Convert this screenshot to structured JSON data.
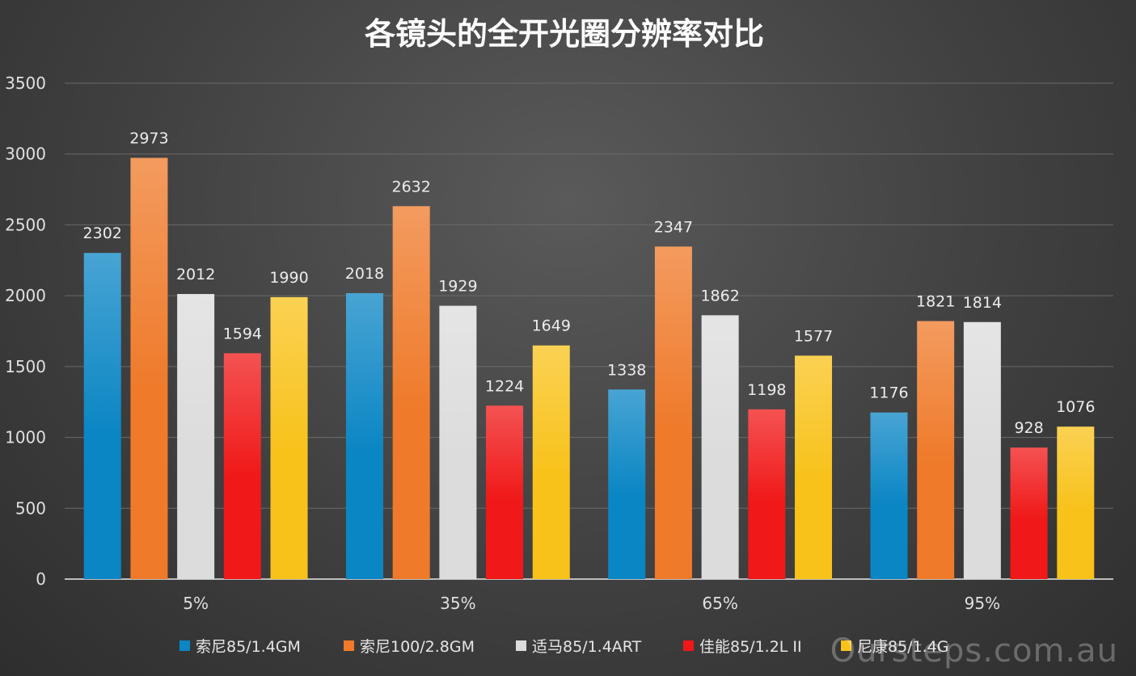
{
  "chart_data": {
    "type": "bar",
    "title": "各镜头的全开光圈分辨率对比",
    "categories": [
      "5%",
      "35%",
      "65%",
      "95%"
    ],
    "ylim": [
      0,
      3500
    ],
    "yticks": [
      0,
      500,
      1000,
      1500,
      2000,
      2500,
      3000,
      3500
    ],
    "grid": true,
    "legend_position": "bottom",
    "series": [
      {
        "name": "索尼85/1.4GM",
        "color": "#0b86c4",
        "values": [
          2302,
          2018,
          1338,
          1176
        ]
      },
      {
        "name": "索尼100/2.8GM",
        "color": "#ef7a2a",
        "values": [
          2973,
          2632,
          2347,
          1821
        ]
      },
      {
        "name": "适马85/1.4ART",
        "color": "#dcdcdc",
        "values": [
          2012,
          1929,
          1862,
          1814
        ]
      },
      {
        "name": "佳能85/1.2L II",
        "color": "#f01818",
        "values": [
          1594,
          1224,
          1198,
          928
        ]
      },
      {
        "name": "尼康85/1.4G",
        "color": "#f8c21a",
        "values": [
          1990,
          1649,
          1577,
          1076
        ]
      }
    ]
  },
  "watermark": "Oursteps.com.au"
}
